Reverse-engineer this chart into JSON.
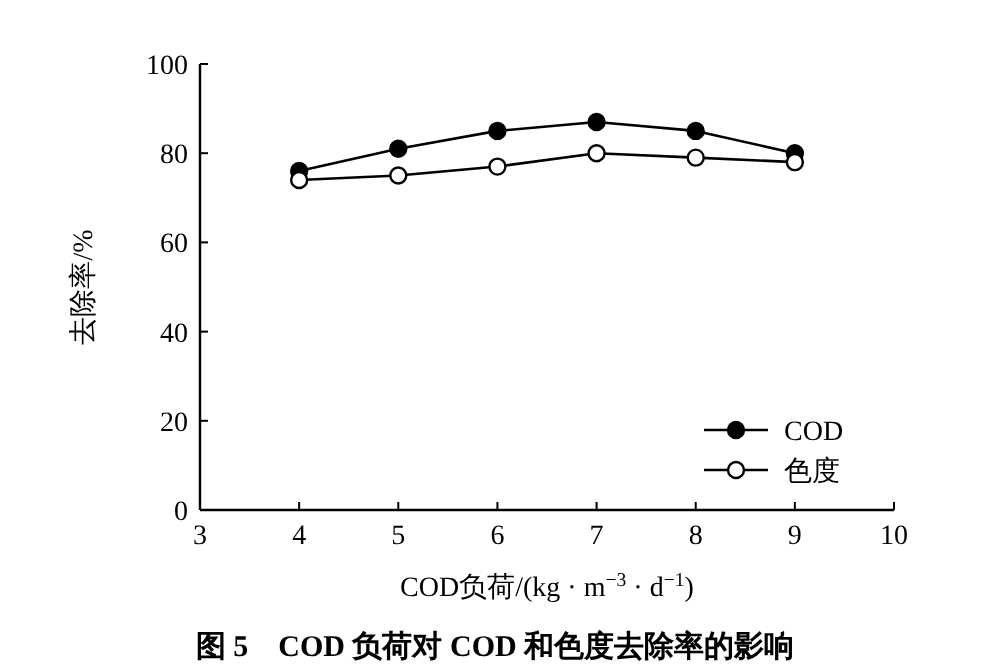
{
  "chart_data": {
    "type": "line",
    "title": "图 5　COD 负荷对 COD 和色度去除率的影响",
    "xlabel": "COD负荷/(kg · m$^{−3}$ · d$^{−1}$)",
    "ylabel": "去除率/%",
    "x": [
      4,
      5,
      6,
      7,
      8,
      9
    ],
    "series": [
      {
        "name": "COD",
        "color": "#000000",
        "values": [
          76,
          81,
          85,
          87,
          85,
          80
        ]
      },
      {
        "name": "色度",
        "color": "#000000",
        "values": [
          74,
          75,
          77,
          80,
          79,
          78
        ]
      }
    ],
    "xlim": [
      3,
      10
    ],
    "xticks": [
      3,
      4,
      5,
      6,
      7,
      8,
      9,
      10
    ],
    "ylim": [
      0,
      100
    ],
    "yticks": [
      0,
      20,
      40,
      60,
      80,
      100
    ],
    "marker": "circle",
    "line_style": "solid",
    "legend": "bottom right",
    "grid": false
  }
}
